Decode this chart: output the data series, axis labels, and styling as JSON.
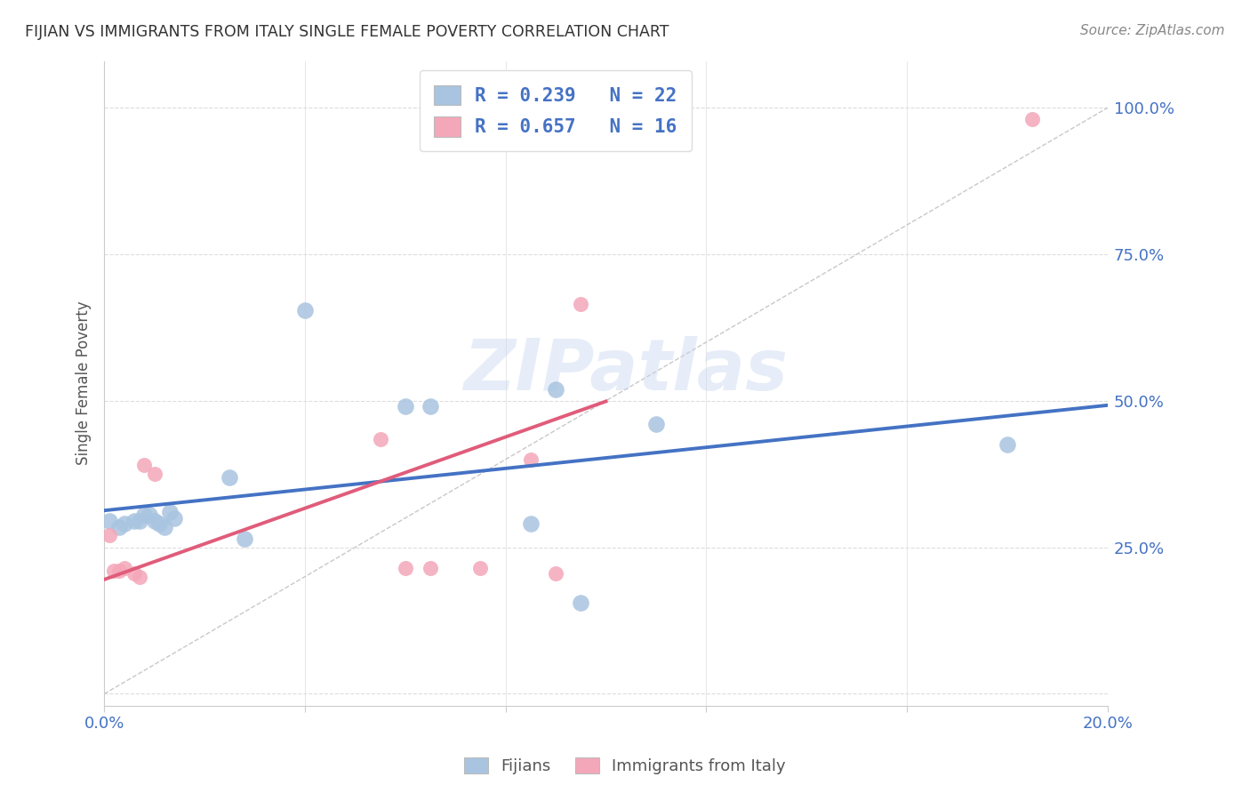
{
  "title": "FIJIAN VS IMMIGRANTS FROM ITALY SINGLE FEMALE POVERTY CORRELATION CHART",
  "source": "Source: ZipAtlas.com",
  "ylabel": "Single Female Poverty",
  "yticks": [
    0.0,
    0.25,
    0.5,
    0.75,
    1.0
  ],
  "ytick_labels": [
    "",
    "25.0%",
    "50.0%",
    "75.0%",
    "100.0%"
  ],
  "xlim": [
    0.0,
    0.2
  ],
  "ylim": [
    -0.02,
    1.08
  ],
  "fijian_color": "#a8c4e0",
  "italy_color": "#f4a7b9",
  "fijian_line_color": "#4472c4",
  "italy_line_color": "#e05c7a",
  "diagonal_color": "#c8c8c8",
  "watermark_text": "ZIPatlas",
  "legend_r_fijian": "R = 0.239",
  "legend_n_fijian": "N = 22",
  "legend_r_italy": "R = 0.657",
  "legend_n_italy": "N = 16",
  "fijian_x": [
    0.001,
    0.003,
    0.004,
    0.006,
    0.007,
    0.008,
    0.009,
    0.01,
    0.011,
    0.012,
    0.013,
    0.014,
    0.025,
    0.028,
    0.04,
    0.06,
    0.065,
    0.085,
    0.09,
    0.095,
    0.11,
    0.18
  ],
  "fijian_y": [
    0.295,
    0.285,
    0.29,
    0.295,
    0.295,
    0.305,
    0.305,
    0.295,
    0.29,
    0.285,
    0.31,
    0.3,
    0.37,
    0.265,
    0.655,
    0.49,
    0.49,
    0.29,
    0.52,
    0.155,
    0.46,
    0.425
  ],
  "italy_x": [
    0.001,
    0.002,
    0.003,
    0.004,
    0.006,
    0.007,
    0.008,
    0.01,
    0.055,
    0.06,
    0.065,
    0.075,
    0.085,
    0.09,
    0.095,
    0.185
  ],
  "italy_y": [
    0.27,
    0.21,
    0.21,
    0.215,
    0.205,
    0.2,
    0.39,
    0.375,
    0.435,
    0.215,
    0.215,
    0.215,
    0.4,
    0.205,
    0.665,
    0.98
  ],
  "fijian_marker_size": 180,
  "italy_marker_size": 150,
  "background_color": "#ffffff",
  "grid_color": "#dddddd",
  "title_color": "#333333",
  "legend_text_color": "#4472c4",
  "tick_color": "#4472c4",
  "ylabel_color": "#555555",
  "source_color": "#888888"
}
